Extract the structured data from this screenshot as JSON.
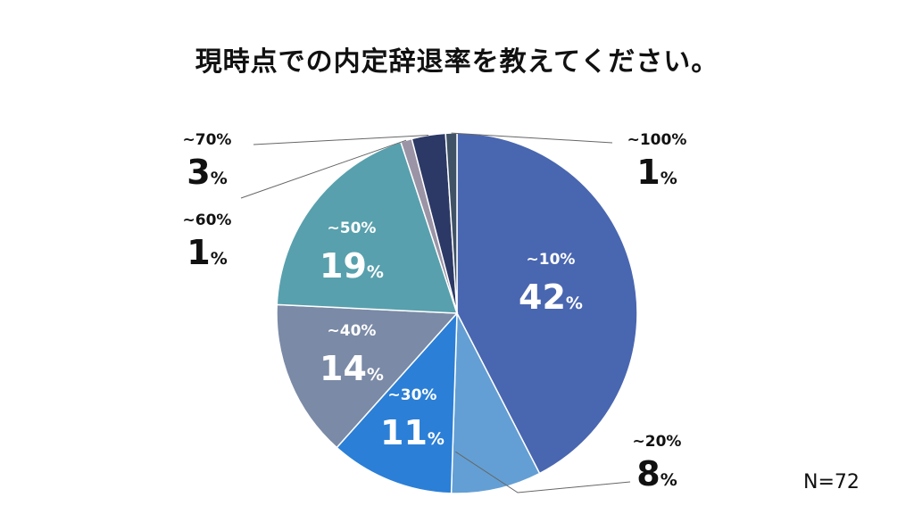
{
  "chart_data": {
    "type": "pie",
    "title": "現時点での内定辞退率を教えてください。",
    "unit": "%",
    "note": "N=72",
    "slices": [
      {
        "label": "~10%",
        "value": 42,
        "color": "#4966b0",
        "label_inside": true
      },
      {
        "label": "~20%",
        "value": 8,
        "color": "#639fd4",
        "label_inside": false
      },
      {
        "label": "~30%",
        "value": 11,
        "color": "#2b7fd6",
        "label_inside": true
      },
      {
        "label": "~40%",
        "value": 14,
        "color": "#7b8aa6",
        "label_inside": true
      },
      {
        "label": "~50%",
        "value": 19,
        "color": "#58a0ad",
        "label_inside": true
      },
      {
        "label": "~60%",
        "value": 1,
        "color": "#9b94a6",
        "label_inside": false
      },
      {
        "label": "~70%",
        "value": 3,
        "color": "#2c3966",
        "label_inside": false
      },
      {
        "label": "~100%",
        "value": 1,
        "color": "#3f5266",
        "label_inside": false
      }
    ]
  }
}
